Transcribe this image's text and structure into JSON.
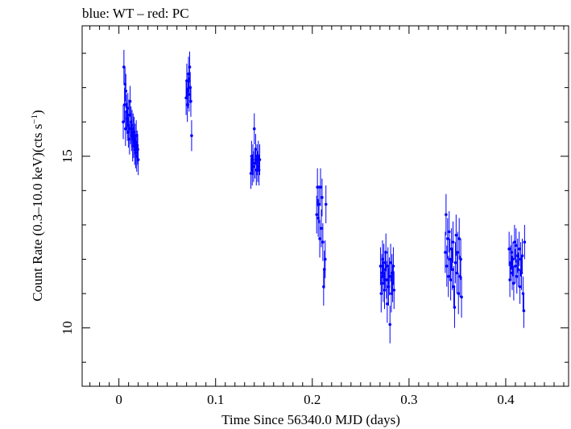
{
  "chart_data": {
    "type": "scatter",
    "title": "blue: WT – red: PC",
    "xlabel": "Time Since 56340.0 MJD (days)",
    "ylabel_main": "Count Rate (0.3–10.0 keV)(cts s",
    "ylabel_sup": "−1",
    "ylabel_close": ")",
    "xlim": [
      -0.038,
      0.465
    ],
    "ylim": [
      8.3,
      18.8
    ],
    "x_ticks": [
      0,
      0.1,
      0.2,
      0.3,
      0.4
    ],
    "x_tick_labels": [
      "0",
      "0.1",
      "0.2",
      "0.3",
      "0.4"
    ],
    "y_ticks": [
      10,
      15
    ],
    "y_tick_labels": [
      "10",
      "15"
    ],
    "grid": false,
    "colors": {
      "WT": "#0000ff",
      "PC": "#ff0000"
    },
    "series": [
      {
        "name": "WT",
        "color": "#0000ff",
        "points": [
          [
            0.0045,
            16.0,
            0.5
          ],
          [
            0.0052,
            17.6,
            0.5
          ],
          [
            0.0058,
            16.5,
            0.5
          ],
          [
            0.0063,
            17.1,
            0.5
          ],
          [
            0.0068,
            15.8,
            0.5
          ],
          [
            0.0072,
            16.9,
            0.5
          ],
          [
            0.0078,
            16.3,
            0.5
          ],
          [
            0.0083,
            16.1,
            0.45
          ],
          [
            0.0088,
            15.9,
            0.45
          ],
          [
            0.0093,
            16.4,
            0.45
          ],
          [
            0.0098,
            15.7,
            0.45
          ],
          [
            0.0105,
            16.2,
            0.45
          ],
          [
            0.011,
            15.5,
            0.45
          ],
          [
            0.0116,
            16.6,
            0.45
          ],
          [
            0.0121,
            15.8,
            0.45
          ],
          [
            0.0126,
            16.0,
            0.45
          ],
          [
            0.0131,
            15.6,
            0.45
          ],
          [
            0.0136,
            15.9,
            0.45
          ],
          [
            0.0142,
            15.3,
            0.45
          ],
          [
            0.0147,
            15.8,
            0.45
          ],
          [
            0.0152,
            15.4,
            0.45
          ],
          [
            0.0157,
            15.7,
            0.45
          ],
          [
            0.0163,
            15.2,
            0.45
          ],
          [
            0.0168,
            15.5,
            0.45
          ],
          [
            0.0173,
            15.1,
            0.45
          ],
          [
            0.0179,
            15.6,
            0.45
          ],
          [
            0.0184,
            15.0,
            0.45
          ],
          [
            0.0189,
            15.3,
            0.45
          ],
          [
            0.0195,
            15.2,
            0.45
          ],
          [
            0.02,
            14.9,
            0.45
          ],
          [
            0.0695,
            16.7,
            0.5
          ],
          [
            0.0702,
            17.2,
            0.5
          ],
          [
            0.0708,
            16.5,
            0.5
          ],
          [
            0.0714,
            16.9,
            0.5
          ],
          [
            0.072,
            17.4,
            0.5
          ],
          [
            0.0726,
            16.8,
            0.5
          ],
          [
            0.0732,
            17.6,
            0.45
          ],
          [
            0.0738,
            17.0,
            0.45
          ],
          [
            0.0744,
            16.6,
            0.45
          ],
          [
            0.0752,
            15.6,
            0.45
          ],
          [
            0.1365,
            14.5,
            0.45
          ],
          [
            0.1372,
            15.0,
            0.45
          ],
          [
            0.1379,
            14.6,
            0.45
          ],
          [
            0.1386,
            14.9,
            0.45
          ],
          [
            0.1393,
            14.7,
            0.45
          ],
          [
            0.14,
            15.8,
            0.45
          ],
          [
            0.1407,
            14.8,
            0.45
          ],
          [
            0.1414,
            15.2,
            0.45
          ],
          [
            0.1421,
            14.6,
            0.45
          ],
          [
            0.1428,
            14.9,
            0.45
          ],
          [
            0.1435,
            14.7,
            0.45
          ],
          [
            0.1442,
            15.0,
            0.45
          ],
          [
            0.1449,
            14.6,
            0.45
          ],
          [
            0.1456,
            14.9,
            0.45
          ],
          [
            0.2045,
            13.3,
            0.55
          ],
          [
            0.2053,
            14.1,
            0.55
          ],
          [
            0.2061,
            13.2,
            0.55
          ],
          [
            0.2069,
            13.6,
            0.55
          ],
          [
            0.2077,
            12.6,
            0.55
          ],
          [
            0.2085,
            14.1,
            0.55
          ],
          [
            0.2093,
            12.9,
            0.55
          ],
          [
            0.2101,
            13.8,
            0.55
          ],
          [
            0.2109,
            12.5,
            0.55
          ],
          [
            0.2117,
            11.2,
            0.55
          ],
          [
            0.2125,
            11.7,
            0.55
          ],
          [
            0.2133,
            12.0,
            0.55
          ],
          [
            0.2141,
            13.6,
            0.55
          ],
          [
            0.2705,
            11.8,
            0.55
          ],
          [
            0.2712,
            11.0,
            0.55
          ],
          [
            0.2719,
            11.6,
            0.55
          ],
          [
            0.2726,
            12.0,
            0.55
          ],
          [
            0.2733,
            11.3,
            0.55
          ],
          [
            0.274,
            11.9,
            0.55
          ],
          [
            0.2747,
            11.1,
            0.55
          ],
          [
            0.2754,
            11.7,
            0.55
          ],
          [
            0.2761,
            12.2,
            0.55
          ],
          [
            0.2768,
            11.4,
            0.55
          ],
          [
            0.2775,
            10.7,
            0.55
          ],
          [
            0.2782,
            11.8,
            0.55
          ],
          [
            0.2789,
            11.2,
            0.55
          ],
          [
            0.2796,
            11.5,
            0.55
          ],
          [
            0.2803,
            10.1,
            0.55
          ],
          [
            0.281,
            11.9,
            0.55
          ],
          [
            0.2817,
            11.0,
            0.55
          ],
          [
            0.2824,
            11.6,
            0.55
          ],
          [
            0.2831,
            11.3,
            0.55
          ],
          [
            0.2838,
            11.8,
            0.55
          ],
          [
            0.2845,
            11.1,
            0.55
          ],
          [
            0.3375,
            12.2,
            0.6
          ],
          [
            0.3383,
            13.3,
            0.6
          ],
          [
            0.3391,
            11.8,
            0.6
          ],
          [
            0.3399,
            12.6,
            0.6
          ],
          [
            0.3407,
            11.5,
            0.6
          ],
          [
            0.3415,
            12.8,
            0.6
          ],
          [
            0.3423,
            12.0,
            0.6
          ],
          [
            0.3431,
            11.4,
            0.6
          ],
          [
            0.3439,
            12.3,
            0.6
          ],
          [
            0.3447,
            11.7,
            0.6
          ],
          [
            0.3455,
            12.5,
            0.6
          ],
          [
            0.3463,
            11.2,
            0.6
          ],
          [
            0.3471,
            10.6,
            0.6
          ],
          [
            0.3479,
            11.9,
            0.6
          ],
          [
            0.3487,
            12.7,
            0.6
          ],
          [
            0.3495,
            11.6,
            0.6
          ],
          [
            0.3503,
            12.2,
            0.6
          ],
          [
            0.3511,
            11.0,
            0.6
          ],
          [
            0.3519,
            12.6,
            0.6
          ],
          [
            0.3527,
            11.5,
            0.6
          ],
          [
            0.3535,
            12.0,
            0.6
          ],
          [
            0.3543,
            10.9,
            0.6
          ],
          [
            0.4035,
            12.3,
            0.5
          ],
          [
            0.4043,
            11.4,
            0.5
          ],
          [
            0.4051,
            11.9,
            0.5
          ],
          [
            0.4059,
            12.2,
            0.5
          ],
          [
            0.4067,
            11.6,
            0.5
          ],
          [
            0.4075,
            12.0,
            0.5
          ],
          [
            0.4083,
            11.3,
            0.5
          ],
          [
            0.4091,
            12.5,
            0.5
          ],
          [
            0.4099,
            11.8,
            0.5
          ],
          [
            0.4107,
            12.4,
            0.5
          ],
          [
            0.4115,
            11.5,
            0.5
          ],
          [
            0.4123,
            12.1,
            0.5
          ],
          [
            0.4131,
            11.7,
            0.5
          ],
          [
            0.4139,
            12.3,
            0.5
          ],
          [
            0.4147,
            11.2,
            0.5
          ],
          [
            0.4155,
            12.0,
            0.5
          ],
          [
            0.4163,
            11.6,
            0.5
          ],
          [
            0.4171,
            12.1,
            0.5
          ],
          [
            0.4179,
            11.0,
            0.5
          ],
          [
            0.4187,
            10.5,
            0.5
          ],
          [
            0.4195,
            12.5,
            0.5
          ]
        ]
      }
    ]
  }
}
